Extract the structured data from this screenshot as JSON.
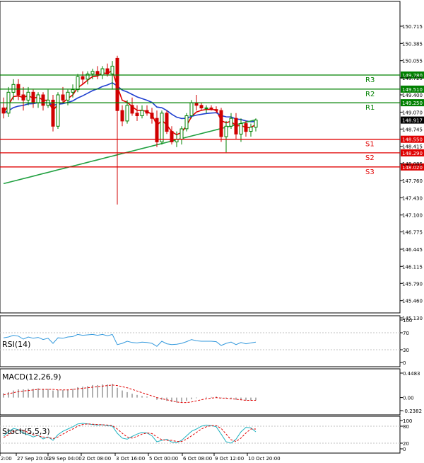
{
  "colors": {
    "background": "#ffffff",
    "frame": "#000000",
    "resistance": "#008000",
    "support": "#e00000",
    "current_price_box": "#000000",
    "ma_fast": "#e00000",
    "ma_medium": "#2040d0",
    "ma_slow": "#20a040",
    "candle_up": "#008000",
    "candle_down": "#d00000",
    "rsi": "#3399dd",
    "macd_hist": "#b0b0b0",
    "macd_signal": "#e00000",
    "stoch_main": "#20b2c0",
    "stoch_signal": "#e00000"
  },
  "chart_data": [
    {
      "type": "candlestick",
      "title": "",
      "ylim": [
        145.13,
        150.88
      ],
      "y_ticks": [
        "150.715",
        "150.385",
        "150.055",
        "149.725",
        "149.400",
        "149.070",
        "148.745",
        "148.415",
        "148.085",
        "147.760",
        "147.430",
        "147.100",
        "146.775",
        "146.445",
        "146.115",
        "145.790",
        "145.460",
        "145.130"
      ],
      "x_tick_labels": [
        "2:00",
        "27 Sep 20:00",
        "29 Sep 04:00",
        "2 Oct 08:00",
        "3 Oct 16:00",
        "5 Oct 00:00",
        "6 Oct 08:00",
        "9 Oct 12:00",
        "10 Oct 20:00"
      ],
      "current_price": "148.917",
      "levels": [
        {
          "name": "R3",
          "value": "149.780",
          "kind": "resistance"
        },
        {
          "name": "R2",
          "value": "149.510",
          "kind": "resistance"
        },
        {
          "name": "R1",
          "value": "149.250",
          "kind": "resistance"
        },
        {
          "name": "S1",
          "value": "148.550",
          "kind": "support"
        },
        {
          "name": "S2",
          "value": "148.290",
          "kind": "support"
        },
        {
          "name": "S3",
          "value": "148.020",
          "kind": "support"
        }
      ],
      "candles": [
        [
          149.15,
          149.35,
          148.95,
          149.05
        ],
        [
          149.05,
          149.55,
          148.98,
          149.45
        ],
        [
          149.45,
          149.7,
          149.3,
          149.6
        ],
        [
          149.6,
          149.7,
          149.3,
          149.4
        ],
        [
          149.4,
          149.55,
          149.1,
          149.3
        ],
        [
          149.3,
          149.55,
          149.2,
          149.45
        ],
        [
          149.45,
          149.5,
          149.15,
          149.25
        ],
        [
          149.25,
          149.45,
          149.15,
          149.4
        ],
        [
          149.4,
          149.45,
          149.1,
          149.2
        ],
        [
          149.2,
          149.5,
          149.15,
          149.3
        ],
        [
          149.3,
          149.4,
          148.7,
          148.8
        ],
        [
          148.8,
          149.45,
          148.75,
          149.4
        ],
        [
          149.4,
          149.55,
          149.25,
          149.3
        ],
        [
          149.3,
          149.5,
          149.2,
          149.45
        ],
        [
          149.45,
          149.6,
          149.35,
          149.5
        ],
        [
          149.5,
          149.8,
          149.45,
          149.75
        ],
        [
          149.75,
          149.85,
          149.6,
          149.7
        ],
        [
          149.7,
          149.85,
          149.6,
          149.8
        ],
        [
          149.8,
          149.9,
          149.7,
          149.85
        ],
        [
          149.85,
          149.95,
          149.7,
          149.78
        ],
        [
          149.78,
          149.95,
          149.7,
          149.9
        ],
        [
          149.9,
          150.0,
          149.75,
          149.8
        ],
        [
          149.8,
          150.05,
          149.5,
          149.95
        ],
        [
          150.1,
          150.15,
          147.3,
          149.1
        ],
        [
          149.1,
          149.2,
          148.8,
          148.9
        ],
        [
          148.9,
          149.3,
          148.85,
          149.2
        ],
        [
          149.2,
          149.35,
          149.0,
          149.05
        ],
        [
          149.05,
          149.2,
          148.9,
          149.0
        ],
        [
          149.0,
          149.2,
          148.95,
          149.1
        ],
        [
          149.1,
          149.2,
          149.0,
          149.05
        ],
        [
          149.05,
          149.15,
          148.85,
          148.95
        ],
        [
          148.95,
          149.1,
          148.4,
          148.5
        ],
        [
          148.5,
          149.1,
          148.45,
          149.05
        ],
        [
          149.05,
          149.1,
          148.65,
          148.7
        ],
        [
          148.7,
          148.8,
          148.45,
          148.5
        ],
        [
          148.5,
          148.7,
          148.4,
          148.55
        ],
        [
          148.55,
          148.8,
          148.45,
          148.75
        ],
        [
          148.75,
          149.05,
          148.7,
          149.0
        ],
        [
          149.0,
          149.3,
          148.95,
          149.25
        ],
        [
          149.25,
          149.4,
          149.1,
          149.2
        ],
        [
          149.2,
          149.25,
          149.1,
          149.15
        ],
        [
          149.15,
          149.2,
          149.05,
          149.15
        ],
        [
          149.15,
          149.2,
          149.1,
          149.12
        ],
        [
          149.12,
          149.18,
          149.05,
          149.1
        ],
        [
          149.1,
          149.15,
          148.5,
          148.6
        ],
        [
          148.6,
          148.9,
          148.3,
          148.8
        ],
        [
          148.8,
          149.05,
          148.75,
          148.95
        ],
        [
          148.95,
          149.05,
          148.55,
          148.65
        ],
        [
          148.65,
          148.95,
          148.5,
          148.85
        ],
        [
          148.85,
          148.9,
          148.6,
          148.7
        ],
        [
          148.7,
          148.85,
          148.6,
          148.78
        ],
        [
          148.78,
          148.95,
          148.7,
          148.917
        ]
      ]
    },
    {
      "type": "line",
      "title": "RSI(14)",
      "ylim": [
        0,
        100
      ],
      "y_ticks": [
        "100",
        "70",
        "30",
        "0"
      ],
      "values": [
        58,
        60,
        64,
        62,
        55,
        60,
        57,
        59,
        54,
        57,
        45,
        58,
        57,
        60,
        61,
        66,
        64,
        65,
        66,
        64,
        66,
        63,
        66,
        42,
        45,
        50,
        47,
        46,
        48,
        47,
        45,
        38,
        50,
        44,
        42,
        43,
        45,
        49,
        54,
        51,
        50,
        50,
        50,
        49,
        40,
        45,
        48,
        42,
        47,
        44,
        46,
        48
      ]
    },
    {
      "type": "bar",
      "title": "MACD(12,26,9)",
      "ylim": [
        -0.2382,
        0.4483
      ],
      "y_ticks": [
        "0.4483",
        "0.00",
        "-0.2382"
      ],
      "series": [
        {
          "values": [
            0.08,
            0.1,
            0.13,
            0.15,
            0.15,
            0.16,
            0.16,
            0.17,
            0.16,
            0.16,
            0.13,
            0.14,
            0.14,
            0.15,
            0.16,
            0.19,
            0.2,
            0.21,
            0.23,
            0.23,
            0.24,
            0.24,
            0.25,
            0.18,
            0.13,
            0.1,
            0.07,
            0.05,
            0.03,
            0.02,
            0.0,
            -0.04,
            -0.04,
            -0.06,
            -0.08,
            -0.09,
            -0.08,
            -0.06,
            -0.03,
            -0.01,
            0.0,
            0.01,
            0.01,
            0.02,
            -0.01,
            -0.02,
            -0.02,
            -0.04,
            -0.04,
            -0.05,
            -0.05,
            -0.05
          ]
        },
        {
          "values": [
            0.05,
            0.07,
            0.09,
            0.11,
            0.12,
            0.13,
            0.14,
            0.15,
            0.15,
            0.15,
            0.15,
            0.14,
            0.14,
            0.14,
            0.15,
            0.16,
            0.17,
            0.18,
            0.19,
            0.2,
            0.21,
            0.22,
            0.23,
            0.22,
            0.2,
            0.18,
            0.15,
            0.12,
            0.09,
            0.06,
            0.03,
            0.0,
            -0.02,
            -0.04,
            -0.06,
            -0.08,
            -0.09,
            -0.09,
            -0.08,
            -0.06,
            -0.04,
            -0.02,
            -0.01,
            0.0,
            -0.01,
            -0.01,
            -0.02,
            -0.03,
            -0.04,
            -0.05,
            -0.05,
            -0.05
          ]
        }
      ]
    },
    {
      "type": "line",
      "title": "Stoch(5,5,3)",
      "ylim": [
        0,
        100
      ],
      "y_ticks": [
        "100",
        "80",
        "20",
        "0"
      ],
      "series": [
        {
          "values": [
            45,
            60,
            72,
            68,
            55,
            50,
            42,
            48,
            35,
            42,
            30,
            50,
            62,
            70,
            78,
            88,
            90,
            88,
            86,
            84,
            85,
            82,
            80,
            55,
            38,
            34,
            44,
            52,
            58,
            56,
            46,
            25,
            30,
            34,
            24,
            22,
            30,
            46,
            62,
            70,
            80,
            84,
            82,
            78,
            52,
            25,
            20,
            34,
            60,
            76,
            74,
            60
          ]
        },
        {
          "values": [
            40,
            50,
            62,
            68,
            65,
            58,
            50,
            46,
            42,
            40,
            36,
            42,
            52,
            62,
            70,
            80,
            86,
            88,
            87,
            86,
            85,
            84,
            82,
            70,
            55,
            42,
            38,
            44,
            52,
            56,
            54,
            42,
            32,
            30,
            30,
            26,
            26,
            34,
            46,
            58,
            70,
            78,
            82,
            82,
            72,
            52,
            32,
            26,
            38,
            56,
            70,
            70
          ]
        }
      ]
    }
  ]
}
